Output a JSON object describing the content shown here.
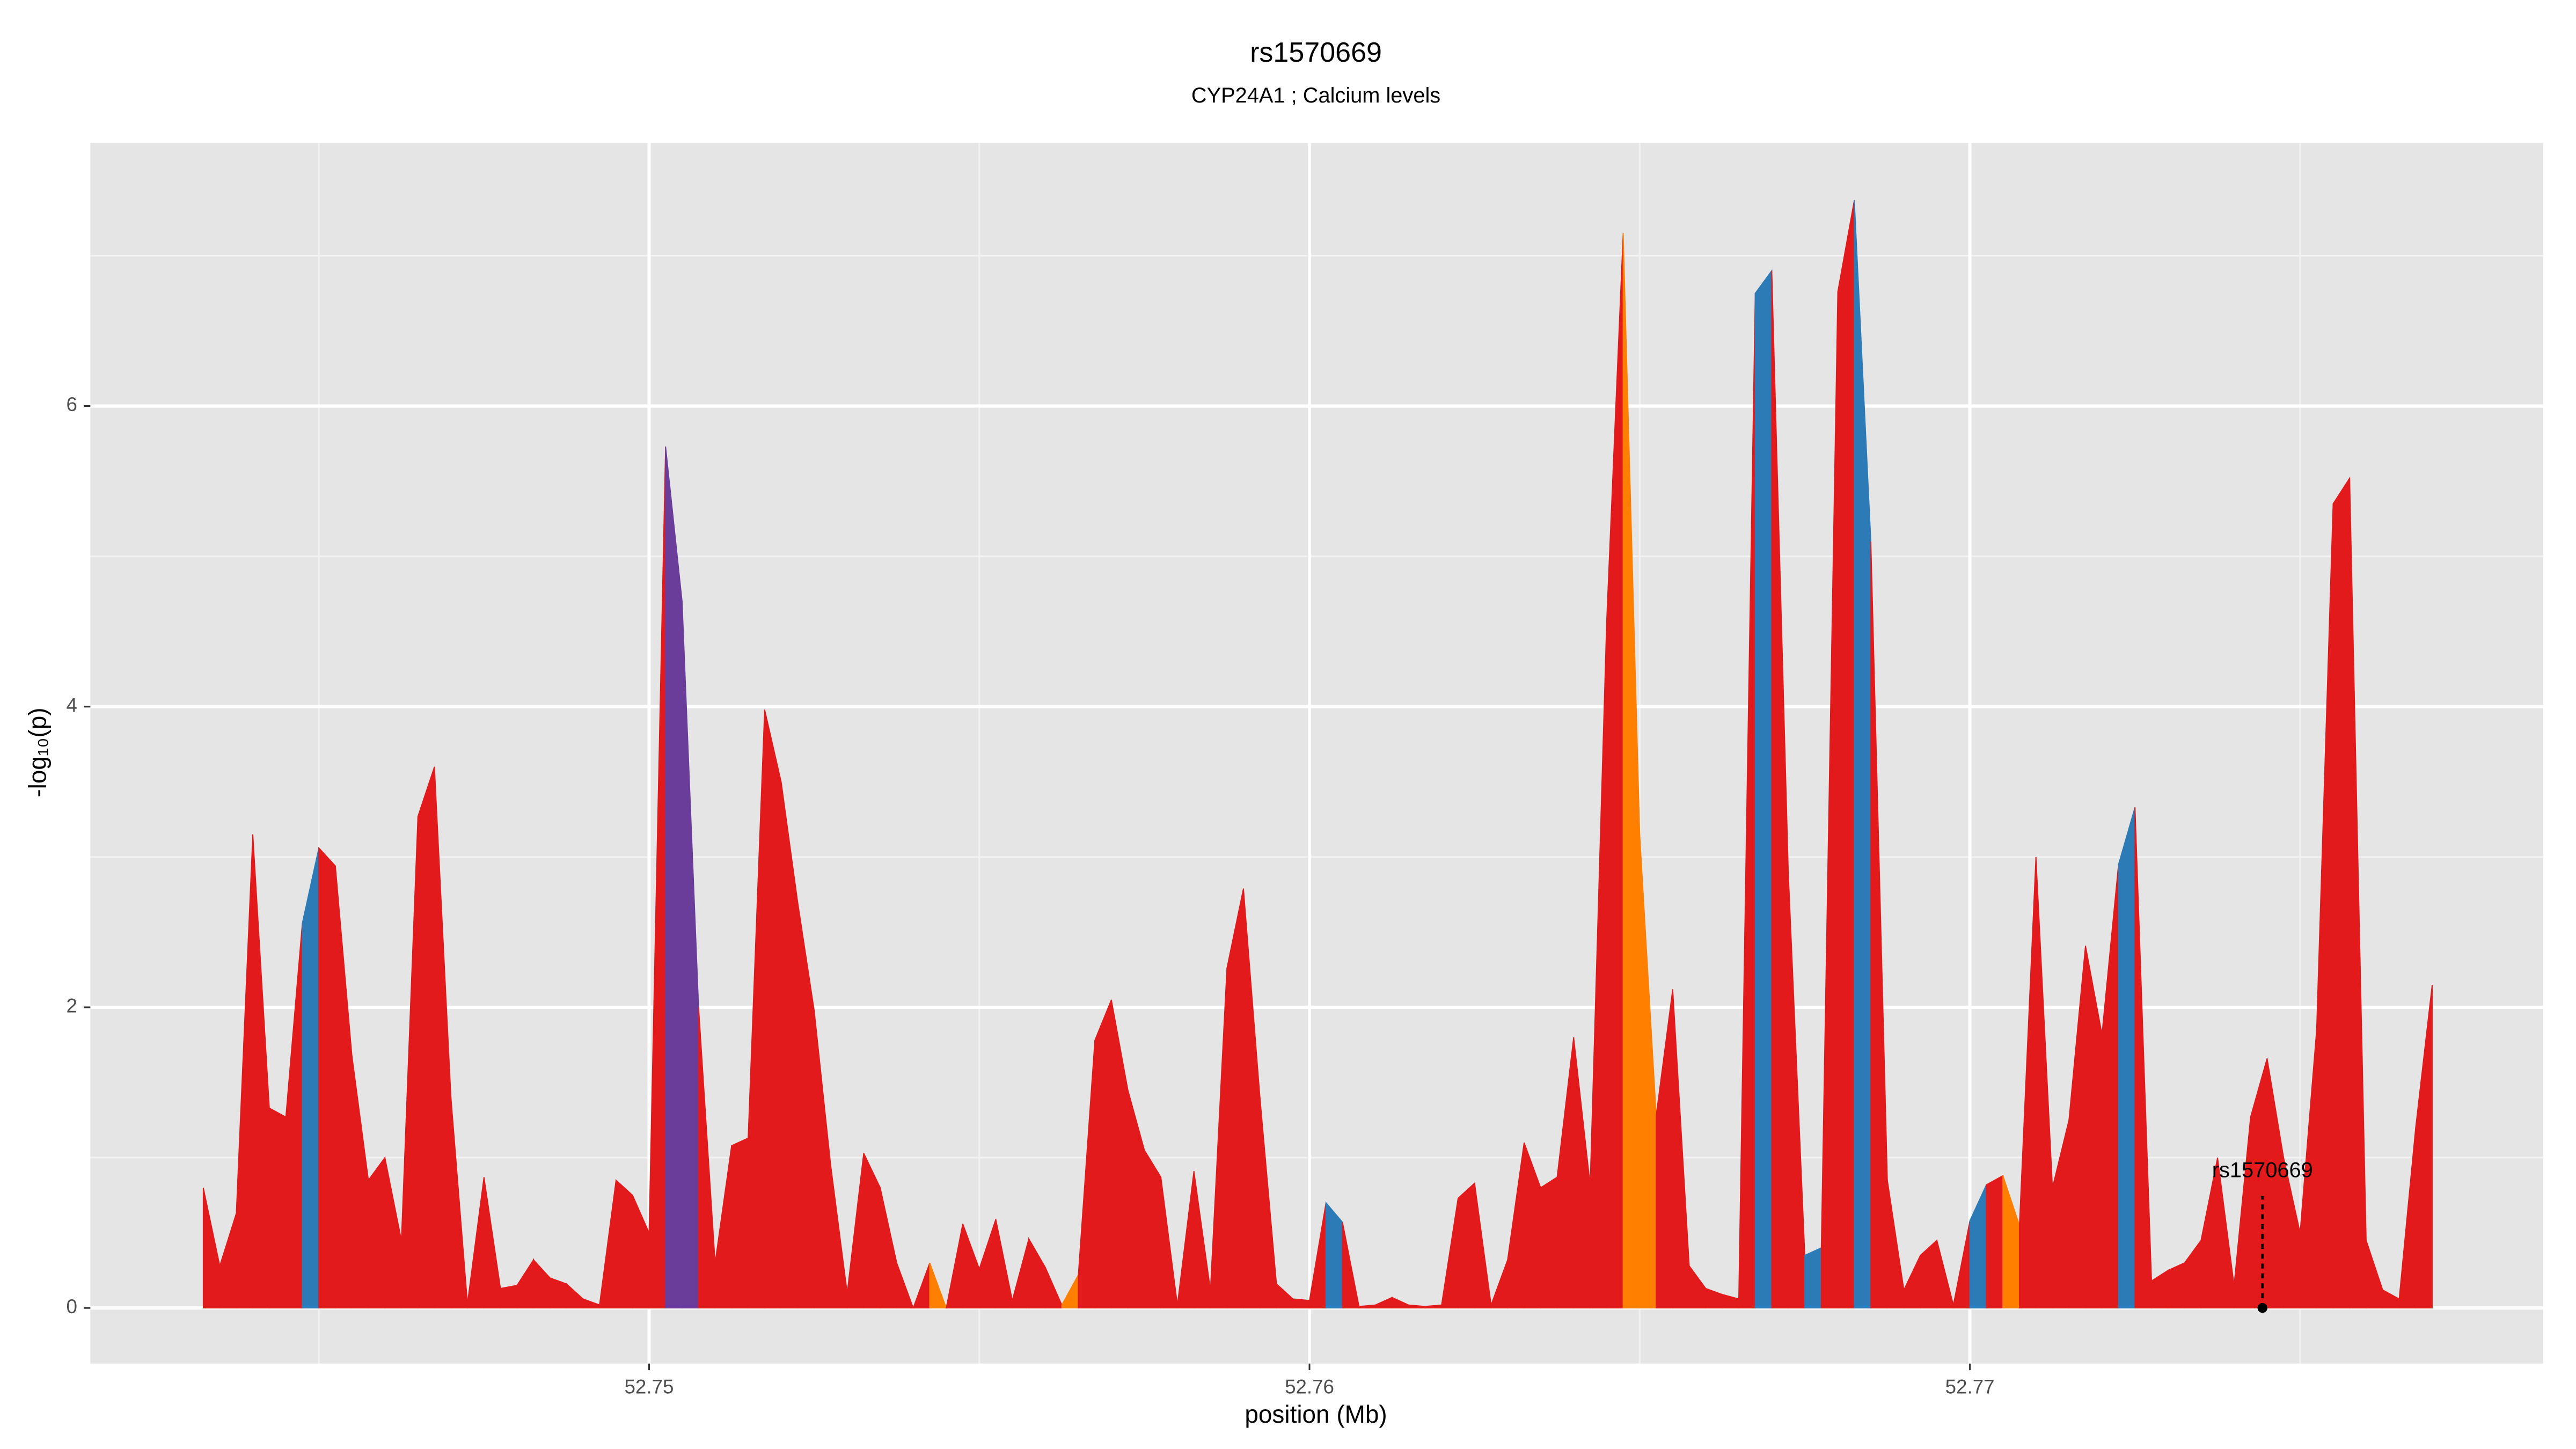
{
  "chart_data": {
    "type": "area",
    "title": "rs1570669",
    "subtitle": "CYP24A1 ; Calcium levels",
    "x_label": "position (Mb)",
    "y_label": "-log₁₀(p)",
    "xlim": [
      52.74154,
      52.77868
    ],
    "ylim": [
      -0.37,
      7.75
    ],
    "xticks": [
      52.75,
      52.76,
      52.77
    ],
    "yticks": [
      0,
      2,
      4,
      6
    ],
    "grid": true,
    "x": [
      52.74325,
      52.7435,
      52.74375,
      52.744,
      52.74425,
      52.7445,
      52.74475,
      52.745,
      52.74525,
      52.7455,
      52.74575,
      52.746,
      52.74625,
      52.7465,
      52.74675,
      52.747,
      52.74725,
      52.7475,
      52.74775,
      52.748,
      52.74825,
      52.7485,
      52.74875,
      52.749,
      52.74925,
      52.7495,
      52.74975,
      52.75,
      52.75025,
      52.7505,
      52.75075,
      52.751,
      52.75125,
      52.7515,
      52.75175,
      52.752,
      52.75225,
      52.7525,
      52.75275,
      52.753,
      52.75325,
      52.7535,
      52.75375,
      52.754,
      52.75425,
      52.7545,
      52.75475,
      52.755,
      52.75525,
      52.7555,
      52.75575,
      52.756,
      52.75625,
      52.7565,
      52.75675,
      52.757,
      52.75725,
      52.7575,
      52.75775,
      52.758,
      52.75825,
      52.7585,
      52.75875,
      52.759,
      52.75925,
      52.7595,
      52.75975,
      52.76,
      52.76025,
      52.7605,
      52.76075,
      52.761,
      52.76125,
      52.7615,
      52.76175,
      52.762,
      52.76225,
      52.7625,
      52.76275,
      52.763,
      52.76325,
      52.7635,
      52.76375,
      52.764,
      52.76425,
      52.7645,
      52.76475,
      52.765,
      52.76525,
      52.7655,
      52.76575,
      52.766,
      52.76625,
      52.7665,
      52.76675,
      52.767,
      52.76725,
      52.7675,
      52.76775,
      52.768,
      52.76825,
      52.7685,
      52.76875,
      52.769,
      52.76925,
      52.7695,
      52.76975,
      52.77,
      52.77025,
      52.7705,
      52.77075,
      52.771,
      52.77125,
      52.7715,
      52.77175,
      52.772,
      52.77225,
      52.7725,
      52.77275,
      52.773,
      52.77325,
      52.7735,
      52.77375,
      52.774,
      52.77425,
      52.7745,
      52.77475,
      52.775,
      52.77525,
      52.7755,
      52.77575,
      52.776,
      52.77625,
      52.7765,
      52.77675,
      52.777
    ],
    "values": [
      0.8,
      0.28,
      0.63,
      3.15,
      1.33,
      1.27,
      2.56,
      3.06,
      2.94,
      1.68,
      0.85,
      1.0,
      0.45,
      3.27,
      3.6,
      1.4,
      0.03,
      0.87,
      0.13,
      0.15,
      0.32,
      0.2,
      0.16,
      0.06,
      0.02,
      0.85,
      0.75,
      0.5,
      5.73,
      4.7,
      2.0,
      0.3,
      1.08,
      1.13,
      3.98,
      3.5,
      2.7,
      1.98,
      0.95,
      0.1,
      1.03,
      0.8,
      0.3,
      0.0,
      0.3,
      0.0,
      0.56,
      0.26,
      0.59,
      0.05,
      0.46,
      0.27,
      0.02,
      0.22,
      1.78,
      2.05,
      1.45,
      1.05,
      0.87,
      0.02,
      0.91,
      0.12,
      2.26,
      2.79,
      1.4,
      0.16,
      0.06,
      0.05,
      0.7,
      0.57,
      0.01,
      0.02,
      0.07,
      0.02,
      0.01,
      0.02,
      0.73,
      0.83,
      0.02,
      0.32,
      1.1,
      0.8,
      0.87,
      1.8,
      0.82,
      4.57,
      7.15,
      3.15,
      1.28,
      2.12,
      0.28,
      0.13,
      0.09,
      0.06,
      6.75,
      6.9,
      2.9,
      0.35,
      0.4,
      6.76,
      7.37,
      5.1,
      0.85,
      0.12,
      0.35,
      0.45,
      0.02,
      0.58,
      0.82,
      0.88,
      0.55,
      3.0,
      0.8,
      1.25,
      2.41,
      1.82,
      2.95,
      3.33,
      0.18,
      0.25,
      0.3,
      0.45,
      1.0,
      0.15,
      1.27,
      1.66,
      1.0,
      0.5,
      1.85,
      5.35,
      5.52,
      0.45,
      0.12,
      0.06,
      1.2,
      2.15
    ],
    "colors": [
      "#e31a1c",
      "#e31a1c",
      "#e31a1c",
      "#e31a1c",
      "#e31a1c",
      "#e31a1c",
      "#2c7bb6",
      "#e31a1c",
      "#e31a1c",
      "#e31a1c",
      "#e31a1c",
      "#e31a1c",
      "#e31a1c",
      "#e31a1c",
      "#e31a1c",
      "#e31a1c",
      "#e31a1c",
      "#e31a1c",
      "#e31a1c",
      "#e31a1c",
      "#e31a1c",
      "#e31a1c",
      "#e31a1c",
      "#e31a1c",
      "#e31a1c",
      "#e31a1c",
      "#e31a1c",
      "#e31a1c",
      "#6a3d9a",
      "#6a3d9a",
      "#e31a1c",
      "#e31a1c",
      "#e31a1c",
      "#e31a1c",
      "#e31a1c",
      "#e31a1c",
      "#e31a1c",
      "#e31a1c",
      "#e31a1c",
      "#e31a1c",
      "#e31a1c",
      "#e31a1c",
      "#e31a1c",
      "#e31a1c",
      "#ff7f00",
      "#e31a1c",
      "#e31a1c",
      "#e31a1c",
      "#e31a1c",
      "#e31a1c",
      "#e31a1c",
      "#e31a1c",
      "#ff7f00",
      "#e31a1c",
      "#e31a1c",
      "#e31a1c",
      "#e31a1c",
      "#e31a1c",
      "#e31a1c",
      "#e31a1c",
      "#e31a1c",
      "#e31a1c",
      "#e31a1c",
      "#e31a1c",
      "#e31a1c",
      "#e31a1c",
      "#e31a1c",
      "#e31a1c",
      "#2c7bb6",
      "#e31a1c",
      "#e31a1c",
      "#e31a1c",
      "#e31a1c",
      "#e31a1c",
      "#e31a1c",
      "#e31a1c",
      "#e31a1c",
      "#e31a1c",
      "#e31a1c",
      "#e31a1c",
      "#e31a1c",
      "#e31a1c",
      "#e31a1c",
      "#e31a1c",
      "#e31a1c",
      "#e31a1c",
      "#ff7f00",
      "#ff7f00",
      "#e31a1c",
      "#e31a1c",
      "#e31a1c",
      "#e31a1c",
      "#e31a1c",
      "#e31a1c",
      "#2c7bb6",
      "#e31a1c",
      "#e31a1c",
      "#2c7bb6",
      "#e31a1c",
      "#e31a1c",
      "#2c7bb6",
      "#e31a1c",
      "#e31a1c",
      "#e31a1c",
      "#e31a1c",
      "#e31a1c",
      "#e31a1c",
      "#2c7bb6",
      "#e31a1c",
      "#ff7f00",
      "#e31a1c",
      "#e31a1c",
      "#e31a1c",
      "#e31a1c",
      "#e31a1c",
      "#e31a1c",
      "#2c7bb6",
      "#e31a1c",
      "#e31a1c",
      "#e31a1c",
      "#e31a1c",
      "#e31a1c",
      "#e31a1c",
      "#e31a1c",
      "#e31a1c",
      "#e31a1c",
      "#e31a1c",
      "#e31a1c",
      "#e31a1c",
      "#e31a1c",
      "#e31a1c",
      "#e31a1c",
      "#e31a1c",
      "#e31a1c",
      "#e31a1c",
      "#e31a1c"
    ],
    "annotations": [
      {
        "text": "rs1570669",
        "x": 52.77443,
        "y": 0
      }
    ]
  }
}
